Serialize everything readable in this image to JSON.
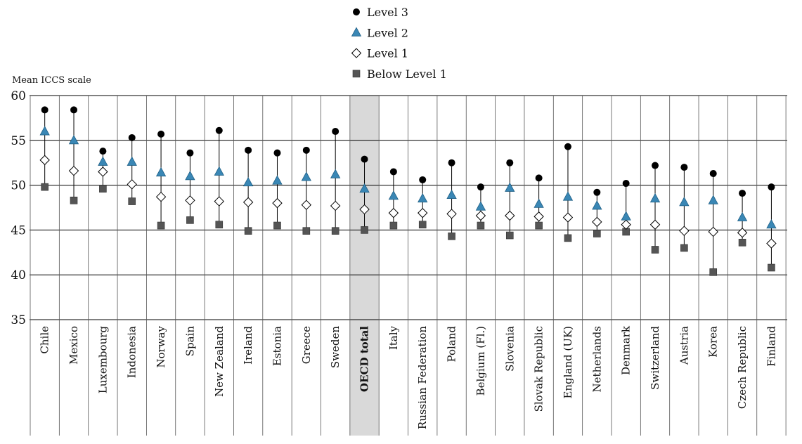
{
  "chart_data": {
    "type": "scatter",
    "ylabel": "Mean ICCS scale",
    "ylim": [
      35,
      60
    ],
    "yticks": [
      "60",
      "55",
      "50",
      "45",
      "40",
      "35"
    ],
    "highlight_category": "OECD total",
    "colors": {
      "level3": "#000000",
      "level2": "#3a87b5",
      "level1": "#ffffff",
      "below1": "#555555",
      "highlight_band": "#d9d9d9",
      "grid": "#000000"
    },
    "legend": [
      {
        "label": "Level 3",
        "marker": "circle"
      },
      {
        "label": "Level 2",
        "marker": "triangle"
      },
      {
        "label": "Level 1",
        "marker": "diamond"
      },
      {
        "label": "Below Level 1",
        "marker": "square"
      }
    ],
    "categories": [
      "Chile",
      "Mexico",
      "Luxembourg",
      "Indonesia",
      "Norway",
      "Spain",
      "New Zealand",
      "Ireland",
      "Estonia",
      "Greece",
      "Sweden",
      "OECD total",
      "Italy",
      "Russian Federation",
      "Poland",
      "Belgium (Fl.)",
      "Slovenia",
      "Slovak Republic",
      "England (UK)",
      "Netherlands",
      "Denmark",
      "Switzerland",
      "Austria",
      "Korea",
      "Czech Republic",
      "Finland"
    ],
    "series": [
      {
        "name": "Level 3",
        "values": [
          58.4,
          58.4,
          53.8,
          55.3,
          55.7,
          53.6,
          56.1,
          53.9,
          53.6,
          53.9,
          56.0,
          52.9,
          51.5,
          50.6,
          52.5,
          49.8,
          52.5,
          50.8,
          54.3,
          49.2,
          50.2,
          52.2,
          52.0,
          51.3,
          49.1,
          49.8
        ]
      },
      {
        "name": "Level 2",
        "values": [
          56.0,
          55.0,
          52.6,
          52.6,
          51.4,
          51.0,
          51.5,
          50.3,
          50.5,
          50.9,
          51.2,
          49.6,
          48.8,
          48.5,
          48.9,
          47.6,
          49.7,
          47.9,
          48.7,
          47.7,
          46.5,
          48.5,
          48.1,
          48.3,
          46.4,
          45.6
        ]
      },
      {
        "name": "Level 1",
        "values": [
          52.8,
          51.6,
          51.5,
          50.1,
          48.7,
          48.3,
          48.2,
          48.1,
          48.0,
          47.8,
          47.7,
          47.3,
          46.9,
          46.9,
          46.8,
          46.6,
          46.6,
          46.5,
          46.4,
          45.9,
          45.6,
          45.6,
          44.9,
          44.8,
          44.7,
          43.5
        ]
      },
      {
        "name": "Below Level 1",
        "values": [
          49.8,
          48.3,
          49.6,
          48.2,
          45.5,
          46.1,
          45.6,
          44.9,
          45.5,
          44.9,
          44.9,
          45.0,
          45.5,
          45.6,
          44.3,
          45.5,
          44.4,
          45.5,
          44.1,
          44.6,
          44.8,
          42.8,
          43.0,
          40.3,
          43.6,
          40.8
        ]
      }
    ]
  }
}
